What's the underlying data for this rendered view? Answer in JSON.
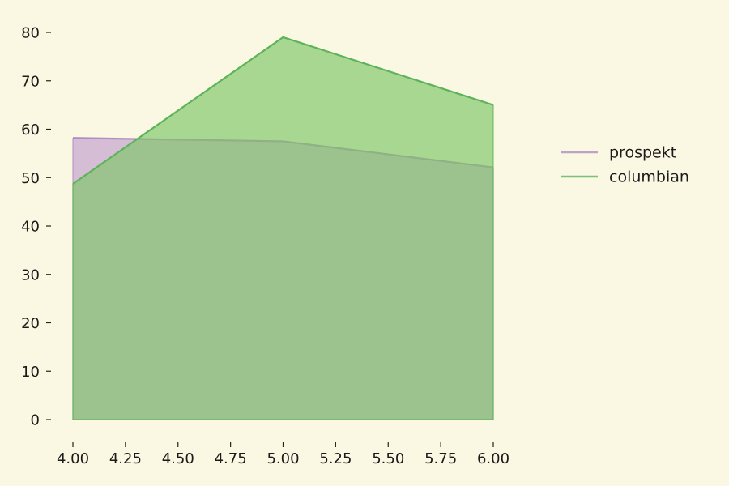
{
  "colors": {
    "background": "#faf8e3",
    "axis": "#222222"
  },
  "legend": {
    "placement": "right",
    "items": [
      "prospekt",
      "columbian"
    ]
  },
  "chart_data": {
    "type": "area",
    "title": "",
    "xlabel": "",
    "ylabel": "",
    "x": [
      4.0,
      5.0,
      6.0
    ],
    "xlim": [
      4.0,
      6.0
    ],
    "ylim": [
      0,
      80
    ],
    "xticks": [
      "4.00",
      "4.25",
      "4.50",
      "4.75",
      "5.00",
      "5.25",
      "5.50",
      "5.75",
      "6.00"
    ],
    "yticks": [
      "0",
      "10",
      "20",
      "30",
      "40",
      "50",
      "60",
      "70",
      "80"
    ],
    "grid": false,
    "stacked": false,
    "series": [
      {
        "name": "prospekt",
        "values": [
          58.2,
          57.5,
          52.1
        ],
        "line_color": "#b08cc0",
        "fill_color": "#c9a9d2"
      },
      {
        "name": "columbian",
        "values": [
          48.7,
          79.0,
          65.0
        ],
        "line_color": "#5cb35a",
        "fill_color": "#7dc466"
      }
    ]
  }
}
